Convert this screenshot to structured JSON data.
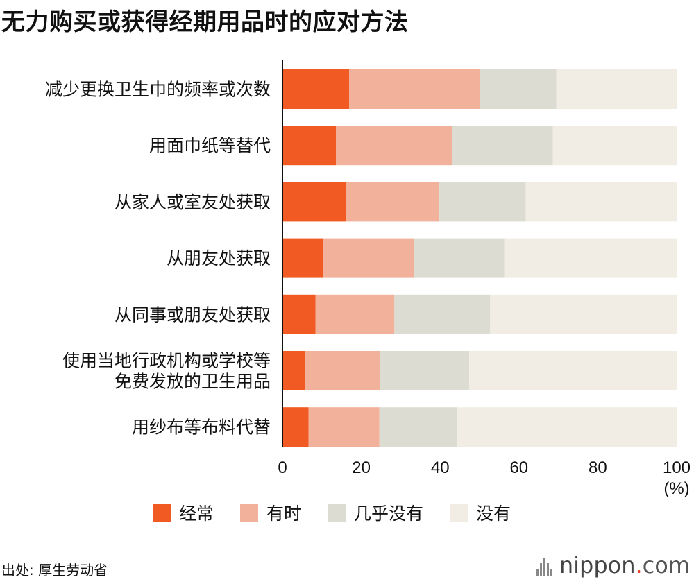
{
  "title": "无力购买或获得经期用品时的应对方法",
  "source": "出处: 厚生劳动省",
  "logo": {
    "name": "nippon",
    "dot": ".",
    "tld": "com"
  },
  "chart_data": {
    "type": "bar",
    "orientation": "horizontal",
    "stacked": true,
    "unit": "(%)",
    "xlim": [
      0,
      100
    ],
    "xticks": [
      "0",
      "20",
      "40",
      "60",
      "80",
      "100"
    ],
    "legend_position": "bottom",
    "grid": false,
    "categories": [
      [
        "减少更换卫生巾的频率或次数"
      ],
      [
        "用面巾纸等替代"
      ],
      [
        "从家人或室友处获取"
      ],
      [
        "从朋友处获取"
      ],
      [
        "从同事或朋友处获取"
      ],
      [
        "使用当地行政机构或学校等",
        "免费发放的卫生用品"
      ],
      [
        "用纱布等布料代替"
      ]
    ],
    "series": [
      {
        "name": "经常",
        "color": "#f15a22",
        "values": [
          16.9,
          13.6,
          16.1,
          10.3,
          8.4,
          5.8,
          6.6
        ]
      },
      {
        "name": "有时",
        "color": "#f2b19a",
        "values": [
          33.2,
          29.5,
          23.7,
          23.0,
          20.0,
          19.0,
          18.0
        ]
      },
      {
        "name": "几乎没有",
        "color": "#dcdcd3",
        "values": [
          19.4,
          25.5,
          21.9,
          23.0,
          24.3,
          22.6,
          19.8
        ]
      },
      {
        "name": "没有",
        "color": "#f1ede4",
        "values": [
          30.5,
          31.4,
          38.3,
          43.7,
          47.3,
          52.6,
          55.6
        ]
      }
    ]
  }
}
